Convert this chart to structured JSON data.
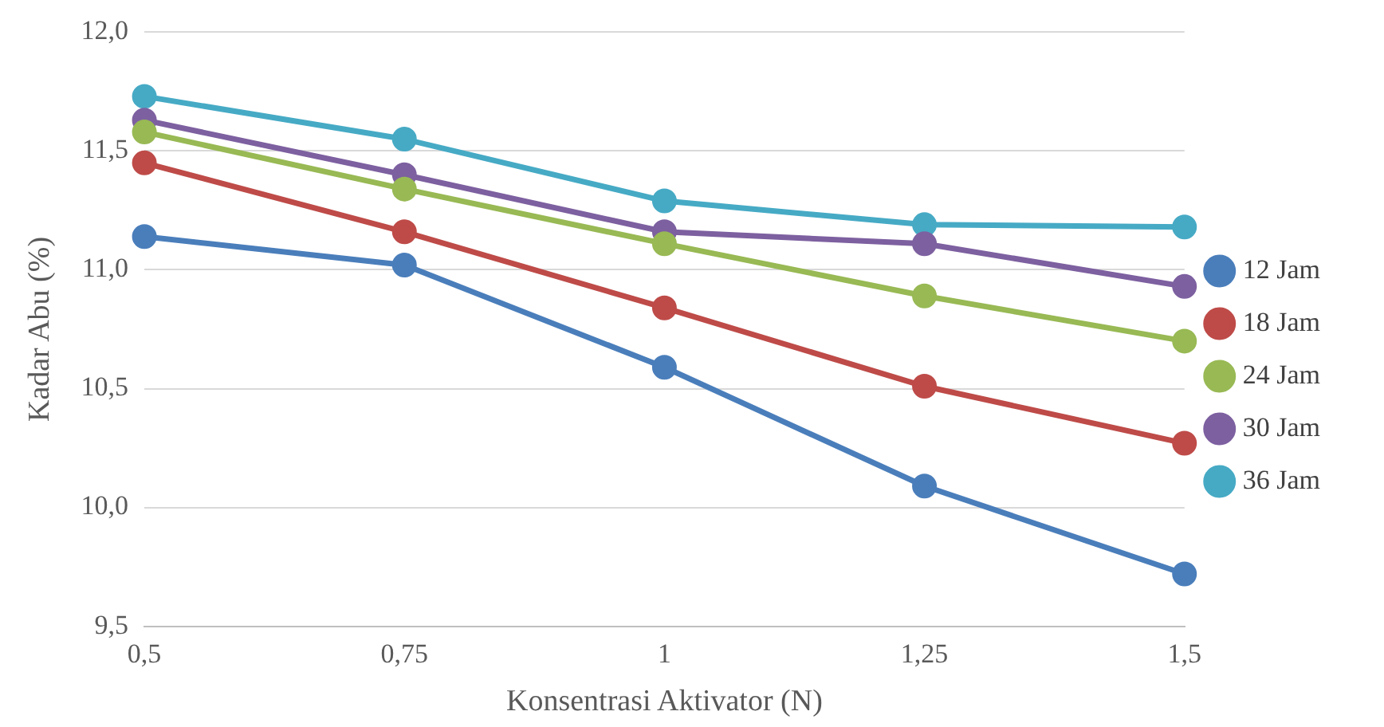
{
  "chart_data": {
    "type": "line",
    "xlabel": "Konsentrasi Aktivator (N)",
    "ylabel": "Kadar Abu (%)",
    "categories": [
      "0,5",
      "0,75",
      "1",
      "1,25",
      "1,5"
    ],
    "series": [
      {
        "name": "12 Jam",
        "color": "#4a7ebb",
        "values": [
          11.14,
          11.02,
          10.59,
          10.09,
          9.72
        ]
      },
      {
        "name": "18 Jam",
        "color": "#be4b48",
        "values": [
          11.45,
          11.16,
          10.84,
          10.51,
          10.27
        ]
      },
      {
        "name": "24 Jam",
        "color": "#98b954",
        "values": [
          11.58,
          11.34,
          11.11,
          10.89,
          10.7
        ]
      },
      {
        "name": "30 Jam",
        "color": "#7d60a0",
        "values": [
          11.63,
          11.4,
          11.16,
          11.11,
          10.93
        ]
      },
      {
        "name": "36 Jam",
        "color": "#46aac5",
        "values": [
          11.73,
          11.55,
          11.29,
          11.19,
          11.18
        ]
      }
    ],
    "ylim": [
      9.5,
      12
    ],
    "yticks": [
      {
        "value": 9.5,
        "label": "9,5"
      },
      {
        "value": 10,
        "label": "10,0"
      },
      {
        "value": 10.5,
        "label": "10,5"
      },
      {
        "value": 11,
        "label": "11,0"
      },
      {
        "value": 11.5,
        "label": "11,5"
      },
      {
        "value": 12,
        "label": "12,0"
      }
    ],
    "grid": "y",
    "legend": "right",
    "marker": "circle",
    "line_style": "solid"
  }
}
